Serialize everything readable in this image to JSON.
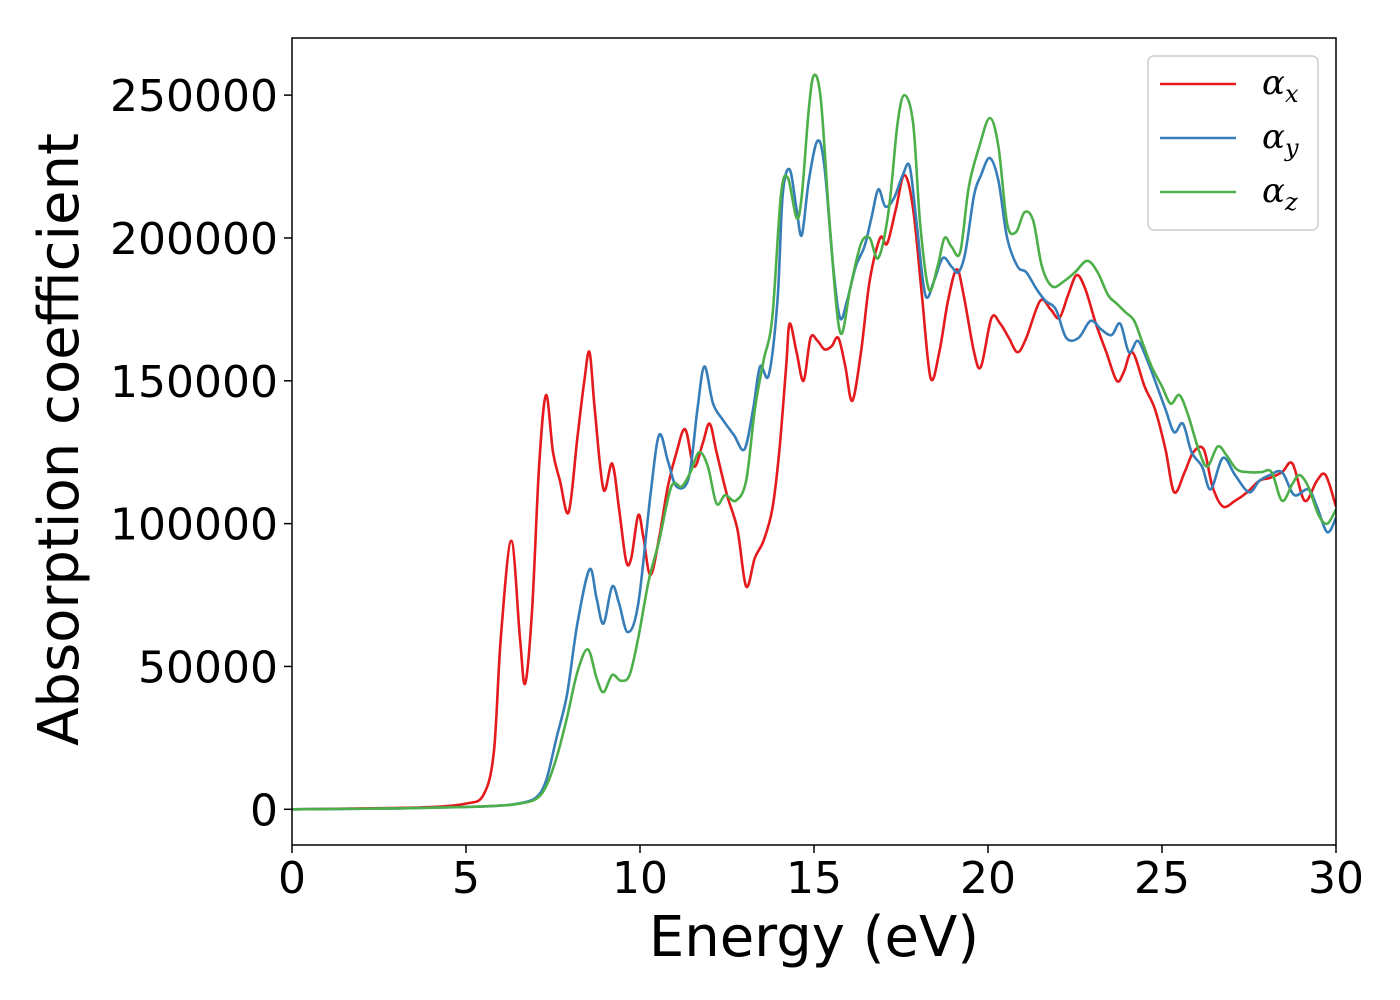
{
  "chart_data": {
    "type": "line",
    "xlabel": "Energy (eV)",
    "ylabel": "Absorption coefficient",
    "xlim": [
      0,
      30
    ],
    "ylim": [
      -12500,
      270000
    ],
    "xticks": [
      0,
      5,
      10,
      15,
      20,
      25,
      30
    ],
    "yticks": [
      0,
      50000,
      100000,
      150000,
      200000,
      250000
    ],
    "grid": false,
    "legend_position": "top-right",
    "series": [
      {
        "name_base": "α",
        "name_sub": "x",
        "color": "#e41a1c",
        "points": [
          [
            0,
            0
          ],
          [
            2,
            300
          ],
          [
            4,
            800
          ],
          [
            5,
            2000
          ],
          [
            5.5,
            5000
          ],
          [
            5.8,
            20000
          ],
          [
            6,
            60000
          ],
          [
            6.3,
            94000
          ],
          [
            6.55,
            60000
          ],
          [
            6.7,
            44000
          ],
          [
            6.9,
            70000
          ],
          [
            7.1,
            120000
          ],
          [
            7.3,
            145000
          ],
          [
            7.5,
            125000
          ],
          [
            7.7,
            115000
          ],
          [
            7.95,
            104000
          ],
          [
            8.2,
            130000
          ],
          [
            8.4,
            150000
          ],
          [
            8.55,
            160000
          ],
          [
            8.7,
            140000
          ],
          [
            8.95,
            112000
          ],
          [
            9.2,
            121000
          ],
          [
            9.4,
            105000
          ],
          [
            9.6,
            87000
          ],
          [
            9.75,
            88000
          ],
          [
            9.95,
            103000
          ],
          [
            10.1,
            95000
          ],
          [
            10.3,
            82000
          ],
          [
            10.55,
            95000
          ],
          [
            10.8,
            113000
          ],
          [
            11.05,
            125000
          ],
          [
            11.3,
            133000
          ],
          [
            11.55,
            120000
          ],
          [
            11.8,
            128000
          ],
          [
            12,
            135000
          ],
          [
            12.2,
            125000
          ],
          [
            12.5,
            110000
          ],
          [
            12.8,
            98000
          ],
          [
            13.05,
            78000
          ],
          [
            13.3,
            88000
          ],
          [
            13.55,
            94000
          ],
          [
            13.8,
            105000
          ],
          [
            14,
            125000
          ],
          [
            14.2,
            155000
          ],
          [
            14.3,
            170000
          ],
          [
            14.5,
            160000
          ],
          [
            14.7,
            150000
          ],
          [
            14.9,
            165000
          ],
          [
            15.1,
            164000
          ],
          [
            15.3,
            161000
          ],
          [
            15.5,
            162000
          ],
          [
            15.7,
            165000
          ],
          [
            15.9,
            155000
          ],
          [
            16.1,
            143000
          ],
          [
            16.35,
            160000
          ],
          [
            16.6,
            185000
          ],
          [
            16.9,
            200000
          ],
          [
            17.1,
            198000
          ],
          [
            17.35,
            210000
          ],
          [
            17.6,
            222000
          ],
          [
            17.85,
            210000
          ],
          [
            18.1,
            180000
          ],
          [
            18.35,
            151000
          ],
          [
            18.6,
            160000
          ],
          [
            18.85,
            178000
          ],
          [
            19.1,
            189000
          ],
          [
            19.3,
            180000
          ],
          [
            19.6,
            160000
          ],
          [
            19.8,
            155000
          ],
          [
            20.1,
            172000
          ],
          [
            20.35,
            170000
          ],
          [
            20.6,
            165000
          ],
          [
            20.85,
            160000
          ],
          [
            21.1,
            165000
          ],
          [
            21.5,
            178000
          ],
          [
            21.8,
            175000
          ],
          [
            22.05,
            172000
          ],
          [
            22.3,
            180000
          ],
          [
            22.55,
            187000
          ],
          [
            22.8,
            182000
          ],
          [
            23.1,
            170000
          ],
          [
            23.4,
            160000
          ],
          [
            23.7,
            150000
          ],
          [
            23.9,
            153000
          ],
          [
            24.15,
            160000
          ],
          [
            24.5,
            148000
          ],
          [
            24.8,
            140000
          ],
          [
            25.1,
            126000
          ],
          [
            25.35,
            111000
          ],
          [
            25.65,
            118000
          ],
          [
            25.9,
            125000
          ],
          [
            26.2,
            126000
          ],
          [
            26.45,
            113000
          ],
          [
            26.75,
            106000
          ],
          [
            27.1,
            108000
          ],
          [
            27.45,
            111000
          ],
          [
            27.8,
            115000
          ],
          [
            28.1,
            116000
          ],
          [
            28.45,
            118000
          ],
          [
            28.75,
            121000
          ],
          [
            29.1,
            108000
          ],
          [
            29.45,
            115000
          ],
          [
            29.7,
            117000
          ],
          [
            30,
            106000
          ]
        ]
      },
      {
        "name_base": "α",
        "name_sub": "y",
        "color": "#377eb8",
        "points": [
          [
            0,
            0
          ],
          [
            3,
            300
          ],
          [
            5,
            800
          ],
          [
            6,
            1300
          ],
          [
            6.5,
            2000
          ],
          [
            7,
            4000
          ],
          [
            7.3,
            10000
          ],
          [
            7.6,
            25000
          ],
          [
            7.9,
            40000
          ],
          [
            8.2,
            65000
          ],
          [
            8.55,
            84000
          ],
          [
            8.75,
            74000
          ],
          [
            8.95,
            65000
          ],
          [
            9.2,
            78000
          ],
          [
            9.4,
            72000
          ],
          [
            9.65,
            62000
          ],
          [
            9.95,
            72000
          ],
          [
            10.3,
            110000
          ],
          [
            10.55,
            131000
          ],
          [
            10.8,
            122000
          ],
          [
            11.05,
            113000
          ],
          [
            11.4,
            116000
          ],
          [
            11.65,
            140000
          ],
          [
            11.85,
            155000
          ],
          [
            12.1,
            142000
          ],
          [
            12.4,
            136000
          ],
          [
            12.7,
            131000
          ],
          [
            13,
            126000
          ],
          [
            13.25,
            140000
          ],
          [
            13.45,
            155000
          ],
          [
            13.7,
            152000
          ],
          [
            13.95,
            178000
          ],
          [
            14.1,
            215000
          ],
          [
            14.3,
            224000
          ],
          [
            14.5,
            210000
          ],
          [
            14.65,
            201000
          ],
          [
            14.85,
            220000
          ],
          [
            15.1,
            234000
          ],
          [
            15.3,
            225000
          ],
          [
            15.55,
            190000
          ],
          [
            15.75,
            172000
          ],
          [
            15.95,
            178000
          ],
          [
            16.2,
            190000
          ],
          [
            16.45,
            197000
          ],
          [
            16.65,
            207000
          ],
          [
            16.85,
            217000
          ],
          [
            17.05,
            211000
          ],
          [
            17.3,
            214000
          ],
          [
            17.55,
            222000
          ],
          [
            17.75,
            225000
          ],
          [
            17.95,
            205000
          ],
          [
            18.2,
            180000
          ],
          [
            18.45,
            185000
          ],
          [
            18.7,
            193000
          ],
          [
            18.95,
            190000
          ],
          [
            19.15,
            188000
          ],
          [
            19.35,
            195000
          ],
          [
            19.6,
            215000
          ],
          [
            19.8,
            222000
          ],
          [
            20.05,
            228000
          ],
          [
            20.3,
            220000
          ],
          [
            20.55,
            200000
          ],
          [
            20.85,
            190000
          ],
          [
            21.1,
            188000
          ],
          [
            21.4,
            182000
          ],
          [
            21.65,
            178000
          ],
          [
            21.95,
            175000
          ],
          [
            22.25,
            165000
          ],
          [
            22.6,
            165000
          ],
          [
            22.95,
            171000
          ],
          [
            23.25,
            168000
          ],
          [
            23.55,
            166000
          ],
          [
            23.8,
            170000
          ],
          [
            24.05,
            160000
          ],
          [
            24.3,
            164000
          ],
          [
            24.55,
            158000
          ],
          [
            24.8,
            150000
          ],
          [
            25.1,
            140000
          ],
          [
            25.35,
            132000
          ],
          [
            25.6,
            135000
          ],
          [
            25.85,
            125000
          ],
          [
            26.15,
            120000
          ],
          [
            26.4,
            112000
          ],
          [
            26.75,
            123000
          ],
          [
            27.1,
            117000
          ],
          [
            27.5,
            111000
          ],
          [
            27.8,
            115000
          ],
          [
            28.1,
            117000
          ],
          [
            28.45,
            118000
          ],
          [
            28.8,
            110000
          ],
          [
            29.2,
            112000
          ],
          [
            29.45,
            106000
          ],
          [
            29.75,
            97000
          ],
          [
            30,
            102000
          ]
        ]
      },
      {
        "name_base": "α",
        "name_sub": "z",
        "color": "#4daf4a",
        "points": [
          [
            0,
            0
          ],
          [
            3,
            300
          ],
          [
            5,
            800
          ],
          [
            6,
            1300
          ],
          [
            6.5,
            1900
          ],
          [
            7,
            3500
          ],
          [
            7.3,
            8000
          ],
          [
            7.6,
            18000
          ],
          [
            7.9,
            32000
          ],
          [
            8.2,
            48000
          ],
          [
            8.5,
            56000
          ],
          [
            8.75,
            46000
          ],
          [
            8.95,
            41000
          ],
          [
            9.2,
            47000
          ],
          [
            9.45,
            45000
          ],
          [
            9.7,
            47000
          ],
          [
            9.95,
            60000
          ],
          [
            10.25,
            80000
          ],
          [
            10.55,
            94000
          ],
          [
            10.9,
            113000
          ],
          [
            11.2,
            113000
          ],
          [
            11.45,
            118000
          ],
          [
            11.7,
            125000
          ],
          [
            11.95,
            120000
          ],
          [
            12.2,
            107000
          ],
          [
            12.45,
            110000
          ],
          [
            12.75,
            108000
          ],
          [
            13.05,
            115000
          ],
          [
            13.3,
            140000
          ],
          [
            13.55,
            157000
          ],
          [
            13.8,
            172000
          ],
          [
            14.05,
            215000
          ],
          [
            14.25,
            221000
          ],
          [
            14.5,
            207000
          ],
          [
            14.65,
            215000
          ],
          [
            14.85,
            245000
          ],
          [
            15.0,
            257000
          ],
          [
            15.2,
            248000
          ],
          [
            15.45,
            205000
          ],
          [
            15.75,
            167000
          ],
          [
            16.05,
            183000
          ],
          [
            16.35,
            198000
          ],
          [
            16.6,
            200000
          ],
          [
            16.85,
            193000
          ],
          [
            17.15,
            210000
          ],
          [
            17.4,
            240000
          ],
          [
            17.6,
            250000
          ],
          [
            17.85,
            240000
          ],
          [
            18.05,
            205000
          ],
          [
            18.3,
            182000
          ],
          [
            18.55,
            190000
          ],
          [
            18.75,
            200000
          ],
          [
            18.95,
            197000
          ],
          [
            19.2,
            195000
          ],
          [
            19.45,
            218000
          ],
          [
            19.75,
            232000
          ],
          [
            20.05,
            242000
          ],
          [
            20.3,
            232000
          ],
          [
            20.55,
            205000
          ],
          [
            20.8,
            202000
          ],
          [
            21.05,
            209000
          ],
          [
            21.3,
            206000
          ],
          [
            21.55,
            190000
          ],
          [
            21.85,
            183000
          ],
          [
            22.2,
            185000
          ],
          [
            22.5,
            188000
          ],
          [
            22.85,
            192000
          ],
          [
            23.15,
            188000
          ],
          [
            23.45,
            180000
          ],
          [
            23.7,
            177000
          ],
          [
            23.95,
            174000
          ],
          [
            24.2,
            171000
          ],
          [
            24.45,
            163000
          ],
          [
            24.7,
            155000
          ],
          [
            25.0,
            148000
          ],
          [
            25.25,
            142000
          ],
          [
            25.5,
            145000
          ],
          [
            25.75,
            138000
          ],
          [
            26.05,
            126000
          ],
          [
            26.3,
            120000
          ],
          [
            26.6,
            127000
          ],
          [
            26.85,
            124000
          ],
          [
            27.15,
            119000
          ],
          [
            27.5,
            118000
          ],
          [
            27.85,
            118000
          ],
          [
            28.15,
            118000
          ],
          [
            28.45,
            108000
          ],
          [
            28.75,
            114000
          ],
          [
            28.95,
            117000
          ],
          [
            29.2,
            113000
          ],
          [
            29.5,
            103000
          ],
          [
            29.75,
            100000
          ],
          [
            30,
            105000
          ]
        ]
      }
    ]
  }
}
